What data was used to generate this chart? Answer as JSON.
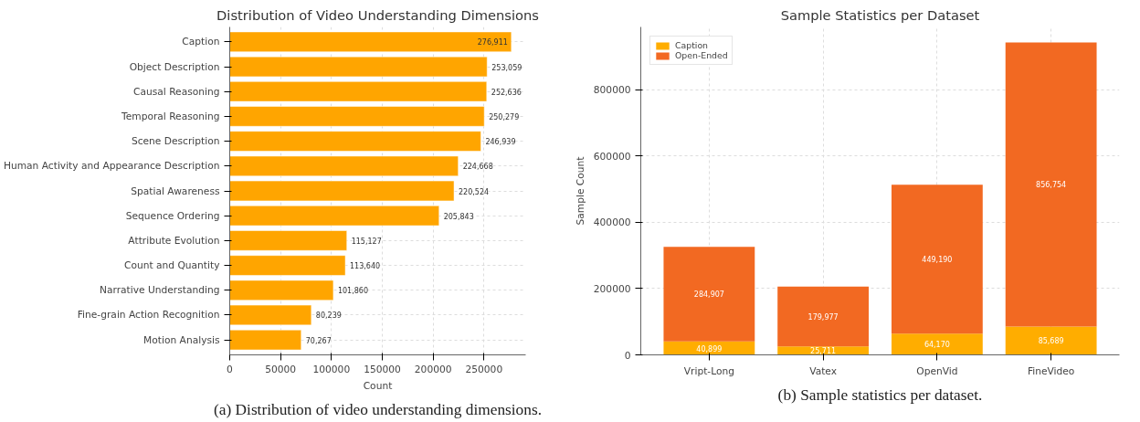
{
  "chart_data": [
    {
      "type": "bar",
      "orientation": "horizontal",
      "title": "Distribution of Video Understanding Dimensions",
      "xlabel": "Count",
      "categories": [
        "Caption",
        "Object Description",
        "Causal Reasoning",
        "Temporal Reasoning",
        "Scene Description",
        "Human Activity and Appearance Description",
        "Spatial Awareness",
        "Sequence Ordering",
        "Attribute Evolution",
        "Count and Quantity",
        "Narrative Understanding",
        "Fine-grain Action Recognition",
        "Motion Analysis"
      ],
      "values": [
        276911,
        253059,
        252636,
        250279,
        246939,
        224668,
        220524,
        205843,
        115127,
        113640,
        101860,
        80239,
        70267
      ],
      "value_labels": [
        "276,911",
        "253,059",
        "252,636",
        "250,279",
        "246,939",
        "224,668",
        "220,524",
        "205,843",
        "115,127",
        "113,640",
        "101,860",
        "80,239",
        "70,267"
      ],
      "color": "#ffa500",
      "xlim": [
        0,
        291000
      ],
      "xticks": [
        0,
        50000,
        100000,
        150000,
        200000,
        250000
      ],
      "grid": true,
      "legend": false,
      "annotations": [
        "(a) Distribution of video understanding dimensions."
      ]
    },
    {
      "type": "bar",
      "stacked": true,
      "title": "Sample Statistics per Dataset",
      "ylabel": "Sample Count",
      "categories": [
        "Vript-Long",
        "Vatex",
        "OpenVid",
        "FineVideo"
      ],
      "series": [
        {
          "name": "Caption",
          "color": "#ffad00",
          "values": [
            40899,
            25711,
            64170,
            85689
          ],
          "value_labels": [
            "40,899",
            "25,711",
            "64,170",
            "85,689"
          ]
        },
        {
          "name": "Open-Ended",
          "color": "#f26922",
          "values": [
            284907,
            179977,
            449190,
            856754
          ],
          "value_labels": [
            "284,907",
            "179,977",
            "449,190",
            "856,754"
          ]
        }
      ],
      "ylim": [
        0,
        989000
      ],
      "yticks": [
        0,
        200000,
        400000,
        600000,
        800000
      ],
      "grid": true,
      "legend": "top left",
      "annotations": [
        "(b) Sample statistics per dataset."
      ]
    }
  ]
}
